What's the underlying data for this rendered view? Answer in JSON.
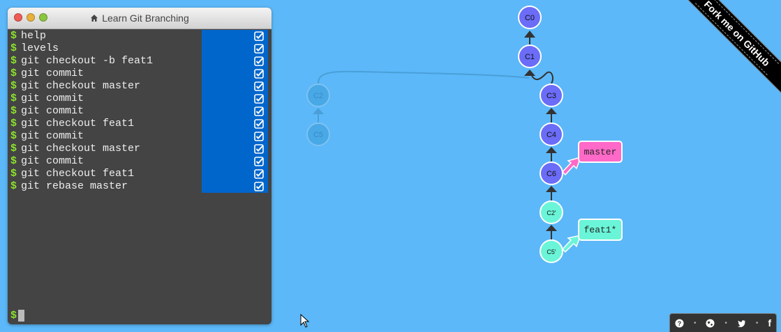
{
  "window": {
    "title": "Learn Git Branching"
  },
  "terminal": {
    "prompt_symbol": "$",
    "commands": [
      "help",
      "levels",
      "git checkout -b feat1",
      "git commit",
      "git checkout master",
      "git commit",
      "git commit",
      "git checkout feat1",
      "git commit",
      "git checkout master",
      "git commit",
      "git checkout feat1",
      "git rebase master"
    ],
    "input_value": ""
  },
  "tree": {
    "commits": [
      "C0",
      "C1",
      "C3",
      "C4",
      "C6",
      "C2'",
      "C5'"
    ],
    "ghost_commits": [
      "C2",
      "C5"
    ],
    "branches": [
      {
        "name": "master",
        "target": "C6",
        "color": "#ff69c8"
      },
      {
        "name": "feat1*",
        "target": "C5'",
        "color": "#6bf5d8"
      }
    ],
    "colors": {
      "commit": "#6b6cf7",
      "rebased": "#6bf5d8",
      "ghost": "#49a8e6"
    }
  },
  "ribbon": {
    "text": "Fork me on GitHub"
  },
  "footer": {
    "icons": [
      "help-icon",
      "globe-icon",
      "twitter-icon",
      "facebook-icon"
    ],
    "facebook_label": "f"
  }
}
